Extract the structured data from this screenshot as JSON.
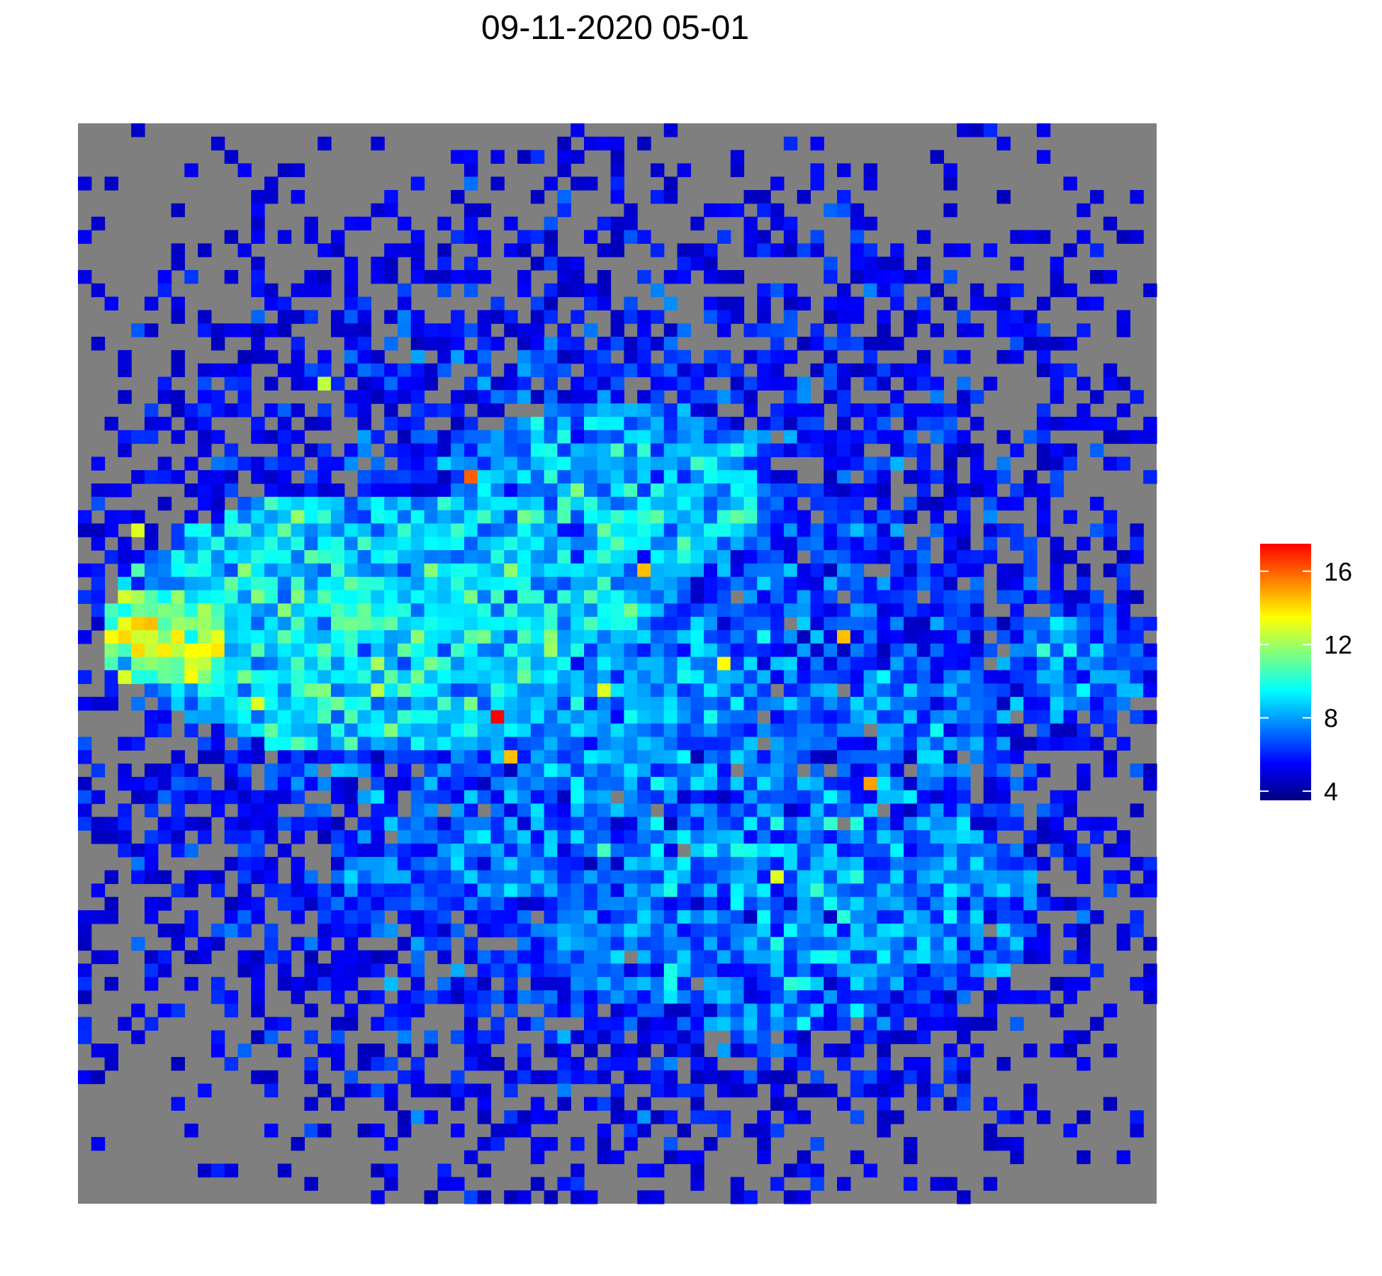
{
  "chart_data": {
    "type": "heatmap",
    "title": "09-11-2020 05-01",
    "xlabel": "",
    "ylabel": "",
    "grid": false,
    "legend_position": "right",
    "na_color": "#7f7f7f",
    "colorscale": [
      "#00007f",
      "#0000ff",
      "#007fff",
      "#00ffff",
      "#7fff7f",
      "#ffff00",
      "#ff7f00",
      "#ff0000"
    ],
    "color_range": [
      3.5,
      17.5
    ],
    "legend_ticks": [
      "4",
      "8",
      "12",
      "16"
    ],
    "legend_tick_values": [
      4,
      8,
      12,
      16
    ],
    "ncols": 81,
    "nrows": 81,
    "generator": {
      "seed": 20200911,
      "na_threshold": 4.4
    },
    "hotspots": [
      {
        "col": 29,
        "row": 26,
        "value": 16
      },
      {
        "col": 31,
        "row": 44,
        "value": 17.5
      },
      {
        "col": 32,
        "row": 47,
        "value": 14.5
      },
      {
        "col": 42,
        "row": 33,
        "value": 14.5
      },
      {
        "col": 5,
        "row": 37,
        "value": 14.5
      },
      {
        "col": 7,
        "row": 38,
        "value": 13.8
      },
      {
        "col": 8,
        "row": 39,
        "value": 13.5
      },
      {
        "col": 2,
        "row": 38,
        "value": 13.5
      },
      {
        "col": 57,
        "row": 38,
        "value": 14.5
      },
      {
        "col": 59,
        "row": 49,
        "value": 15
      },
      {
        "col": 48,
        "row": 40,
        "value": 13.5
      },
      {
        "col": 13,
        "row": 43,
        "value": 13
      },
      {
        "col": 39,
        "row": 42,
        "value": 13
      },
      {
        "col": 52,
        "row": 56,
        "value": 13
      },
      {
        "col": 18,
        "row": 19,
        "value": 12.5
      },
      {
        "col": 4,
        "row": 30,
        "value": 13
      }
    ],
    "regions": [
      {
        "cx": 22,
        "cy": 37,
        "rx": 20,
        "ry": 10,
        "value": 9.4
      },
      {
        "cx": 6,
        "cy": 38,
        "rx": 5,
        "ry": 4,
        "value": 12
      },
      {
        "cx": 52,
        "cy": 58,
        "rx": 20,
        "ry": 10,
        "value": 7.8
      },
      {
        "cx": 40,
        "cy": 28,
        "rx": 12,
        "ry": 8,
        "value": 8.5
      },
      {
        "cx": 62,
        "cy": 44,
        "rx": 8,
        "ry": 6,
        "value": 7.5
      },
      {
        "cx": 74,
        "cy": 40,
        "rx": 6,
        "ry": 5,
        "value": 7.5
      },
      {
        "cx": 30,
        "cy": 55,
        "rx": 12,
        "ry": 4,
        "value": 7.5
      }
    ]
  }
}
